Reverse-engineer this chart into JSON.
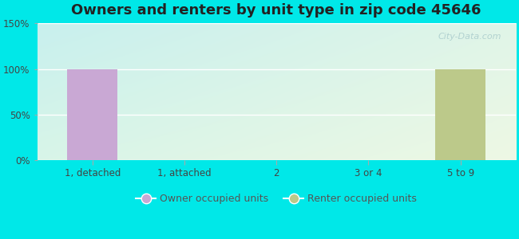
{
  "title": "Owners and renters by unit type in zip code 45646",
  "categories": [
    "1, detached",
    "1, attached",
    "2",
    "3 or 4",
    "5 to 9"
  ],
  "owner_values": [
    100,
    0,
    0,
    0,
    0
  ],
  "renter_values": [
    0,
    0,
    0,
    0,
    100
  ],
  "owner_color": "#c9a8d4",
  "renter_color": "#bcc98a",
  "ylim": [
    0,
    150
  ],
  "yticks": [
    0,
    50,
    100,
    150
  ],
  "ytick_labels": [
    "0%",
    "50%",
    "100%",
    "150%"
  ],
  "bar_width": 0.55,
  "outer_bg": "#00e8e8",
  "title_fontsize": 13,
  "legend_fontsize": 9,
  "watermark": "City-Data.com",
  "bg_top_left": "#b8f0ee",
  "bg_bottom_right": "#e8f5e0"
}
